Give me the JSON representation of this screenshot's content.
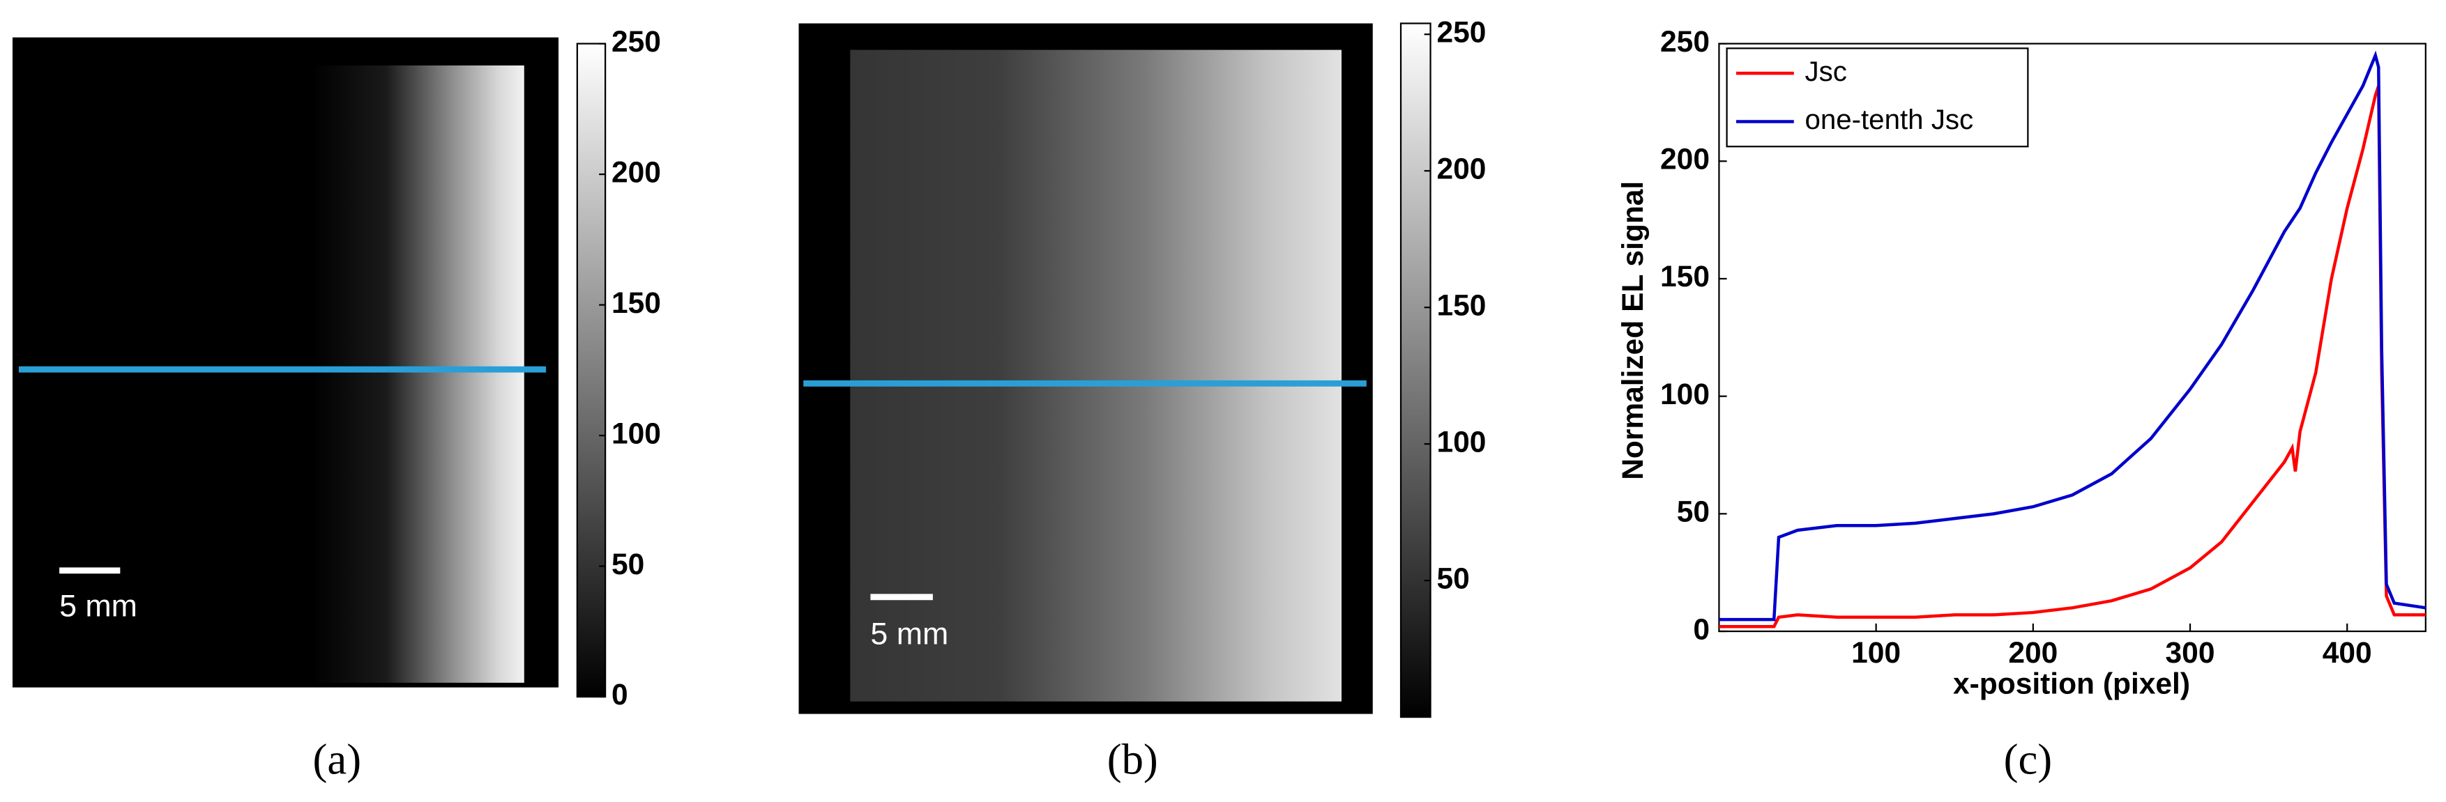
{
  "chart_data": [
    {
      "type": "image",
      "panel_label": "(a)",
      "scale_bar": "5 mm",
      "ylim": [
        0,
        250
      ],
      "yticks": [
        0,
        50,
        100,
        150,
        200,
        250
      ]
    },
    {
      "type": "image",
      "panel_label": "(b)",
      "scale_bar": "5 mm",
      "ylim": [
        0,
        254
      ],
      "yticks": [
        50,
        100,
        150,
        200,
        250
      ]
    },
    {
      "type": "line",
      "panel_label": "(c)",
      "xlabel": "x-position (pixel)",
      "ylabel": "Normalized EL signal",
      "x": [
        0,
        20,
        35,
        38,
        50,
        75,
        100,
        125,
        150,
        175,
        200,
        225,
        250,
        275,
        300,
        320,
        340,
        360,
        365,
        367,
        370,
        380,
        390,
        400,
        410,
        418,
        420,
        422,
        425,
        430,
        450
      ],
      "series": [
        {
          "name": "Jsc",
          "color": "#ff0000",
          "values": [
            2,
            2,
            2,
            6,
            7,
            6,
            6,
            6,
            7,
            7,
            8,
            10,
            13,
            18,
            27,
            38,
            55,
            72,
            78,
            68,
            85,
            110,
            150,
            180,
            205,
            228,
            232,
            110,
            15,
            7,
            7
          ]
        },
        {
          "name": "one-tenth Jsc",
          "color": "#0000cc",
          "values": [
            5,
            5,
            5,
            40,
            43,
            45,
            45,
            46,
            48,
            50,
            53,
            58,
            67,
            82,
            103,
            122,
            145,
            170,
            175,
            177,
            180,
            195,
            208,
            220,
            232,
            245,
            240,
            120,
            20,
            12,
            10
          ]
        }
      ],
      "xlim": [
        0,
        450
      ],
      "ylim": [
        0,
        250
      ],
      "xticks": [
        100,
        200,
        300,
        400
      ],
      "yticks": [
        0,
        50,
        100,
        150,
        200,
        250
      ],
      "legend": "upper left"
    }
  ]
}
